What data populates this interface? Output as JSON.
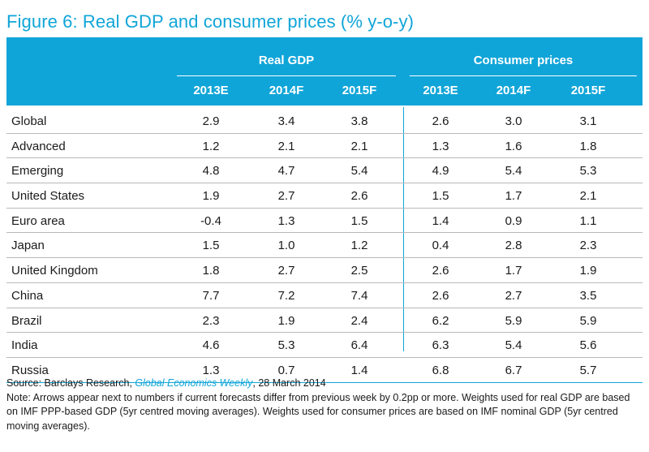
{
  "title": "Figure 6: Real GDP and consumer prices (% y-o-y)",
  "groups": [
    "Real GDP",
    "Consumer prices"
  ],
  "columns": [
    "2013E",
    "2014F",
    "2015F",
    "2013E",
    "2014F",
    "2015F"
  ],
  "rows": [
    {
      "label": "Global",
      "values": [
        "2.9",
        "3.4",
        "3.8",
        "2.6",
        "3.0",
        "3.1"
      ]
    },
    {
      "label": "Advanced",
      "values": [
        "1.2",
        "2.1",
        "2.1",
        "1.3",
        "1.6",
        "1.8"
      ]
    },
    {
      "label": "Emerging",
      "values": [
        "4.8",
        "4.7",
        "5.4",
        "4.9",
        "5.4",
        "5.3"
      ]
    },
    {
      "label": "United States",
      "values": [
        "1.9",
        "2.7",
        "2.6",
        "1.5",
        "1.7",
        "2.1"
      ]
    },
    {
      "label": "Euro area",
      "values": [
        "-0.4",
        "1.3",
        "1.5",
        "1.4",
        "0.9",
        "1.1"
      ]
    },
    {
      "label": "Japan",
      "values": [
        "1.5",
        "1.0",
        "1.2",
        "0.4",
        "2.8",
        "2.3"
      ]
    },
    {
      "label": "United Kingdom",
      "values": [
        "1.8",
        "2.7",
        "2.5",
        "2.6",
        "1.7",
        "1.9"
      ]
    },
    {
      "label": "China",
      "values": [
        "7.7",
        "7.2",
        "7.4",
        "2.6",
        "2.7",
        "3.5"
      ]
    },
    {
      "label": "Brazil",
      "values": [
        "2.3",
        "1.9",
        "2.4",
        "6.2",
        "5.9",
        "5.9"
      ]
    },
    {
      "label": "India",
      "values": [
        "4.6",
        "5.3",
        "6.4",
        "6.3",
        "5.4",
        "5.6"
      ]
    },
    {
      "label": "Russia",
      "values": [
        "1.3",
        "0.7",
        "1.4",
        "6.8",
        "6.7",
        "5.7"
      ]
    }
  ],
  "footer": {
    "source_prefix": "Source: Barclays Research, ",
    "source_pub": "Global Economics Weekly",
    "source_suffix": ", 28 March 2014",
    "note": "Note: Arrows appear next to numbers if current forecasts differ from previous week by 0.2pp or more. Weights used for real GDP are based on IMF PPP-based GDP (5yr centred moving averages). Weights used for consumer prices are based on IMF nominal GDP (5yr centred moving averages)."
  },
  "colors": {
    "accent": "#10a5d8"
  }
}
